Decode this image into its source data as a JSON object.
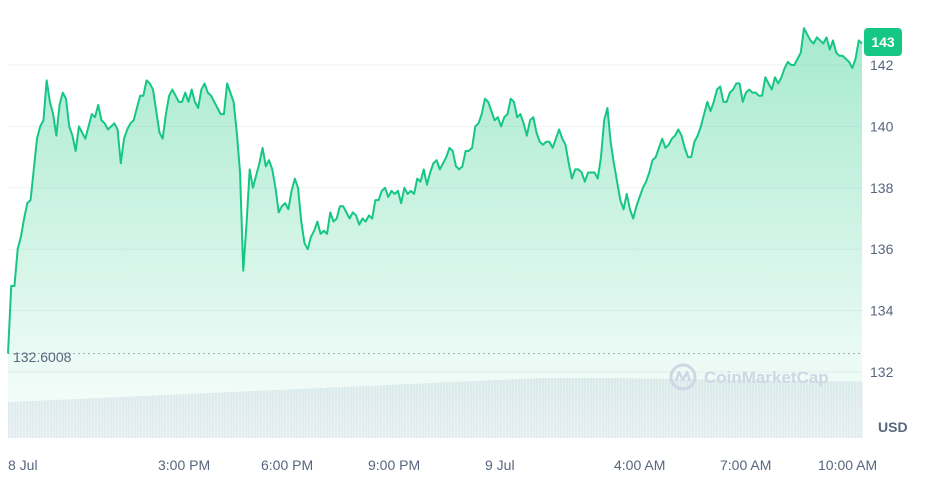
{
  "chart_data": {
    "type": "area",
    "unit": "USD",
    "y_ticks": [
      132,
      134,
      136,
      138,
      140,
      142
    ],
    "ylim": [
      131.2,
      143.8
    ],
    "x_ticks": [
      "8 Jul",
      "3:00 PM",
      "6:00 PM",
      "9:00 PM",
      "9 Jul",
      "4:00 AM",
      "7:00 AM",
      "10:00 AM"
    ],
    "open_value": "132.6008",
    "current_value": "143",
    "watermark": "CoinMarketCap",
    "grid": true,
    "line_color": "#16c784",
    "values": [
      132.6,
      134.8,
      134.8,
      136.0,
      136.4,
      137.0,
      137.5,
      137.6,
      138.6,
      139.6,
      140.0,
      140.2,
      141.5,
      140.8,
      140.4,
      139.7,
      140.7,
      141.1,
      140.9,
      140.0,
      139.7,
      139.2,
      140.0,
      139.8,
      139.6,
      140.0,
      140.4,
      140.3,
      140.7,
      140.2,
      140.1,
      139.9,
      140.0,
      140.1,
      139.9,
      138.8,
      139.6,
      139.9,
      140.1,
      140.2,
      140.6,
      141.0,
      141.0,
      141.5,
      141.4,
      141.2,
      140.5,
      139.8,
      139.6,
      140.4,
      141.0,
      141.2,
      141.0,
      140.8,
      140.8,
      141.1,
      140.8,
      141.2,
      140.8,
      140.6,
      141.2,
      141.4,
      141.1,
      141.0,
      140.8,
      140.6,
      140.4,
      140.4,
      141.4,
      141.1,
      140.8,
      139.8,
      138.5,
      135.3,
      136.8,
      138.6,
      138.0,
      138.4,
      138.8,
      139.3,
      138.7,
      138.9,
      138.6,
      138.0,
      137.2,
      137.4,
      137.5,
      137.3,
      137.9,
      138.3,
      138.0,
      136.9,
      136.2,
      136.0,
      136.4,
      136.6,
      136.9,
      136.5,
      136.6,
      136.5,
      137.2,
      136.9,
      137.0,
      137.4,
      137.4,
      137.2,
      137.0,
      137.2,
      137.1,
      136.8,
      137.0,
      136.9,
      137.1,
      137.0,
      137.6,
      137.6,
      137.9,
      138.0,
      137.7,
      137.9,
      137.8,
      137.9,
      137.5,
      138.0,
      137.8,
      137.9,
      137.8,
      138.3,
      138.2,
      138.6,
      138.1,
      138.5,
      138.8,
      138.9,
      138.6,
      138.8,
      139.0,
      139.3,
      139.2,
      138.7,
      138.6,
      138.7,
      139.2,
      139.2,
      139.3,
      140.0,
      140.1,
      140.4,
      140.9,
      140.8,
      140.5,
      140.2,
      140.3,
      140.0,
      140.3,
      140.4,
      140.9,
      140.8,
      140.3,
      140.4,
      140.1,
      139.7,
      140.2,
      140.3,
      139.8,
      139.5,
      139.4,
      139.5,
      139.5,
      139.3,
      139.6,
      139.9,
      139.6,
      139.4,
      138.8,
      138.3,
      138.6,
      138.6,
      138.5,
      138.2,
      138.5,
      138.5,
      138.5,
      138.3,
      139.0,
      140.2,
      140.6,
      139.5,
      138.8,
      138.2,
      137.6,
      137.3,
      137.8,
      137.3,
      137.0,
      137.4,
      137.7,
      138.0,
      138.2,
      138.5,
      138.9,
      139.0,
      139.3,
      139.6,
      139.3,
      139.4,
      139.6,
      139.7,
      139.9,
      139.7,
      139.3,
      139.0,
      139.0,
      139.5,
      139.7,
      140.0,
      140.4,
      140.8,
      140.5,
      140.8,
      141.2,
      141.3,
      140.8,
      140.8,
      141.1,
      141.2,
      141.4,
      141.4,
      140.8,
      141.1,
      141.2,
      141.1,
      141.1,
      141.0,
      141.0,
      141.6,
      141.4,
      141.2,
      141.6,
      141.4,
      141.6,
      141.9,
      142.1,
      142.0,
      142.0,
      142.2,
      142.4,
      143.2,
      143.0,
      142.8,
      142.7,
      142.9,
      142.8,
      142.7,
      142.9,
      142.5,
      142.8,
      142.4,
      142.3,
      142.3,
      142.2,
      142.1,
      141.9,
      142.2,
      142.8,
      142.7
    ]
  }
}
